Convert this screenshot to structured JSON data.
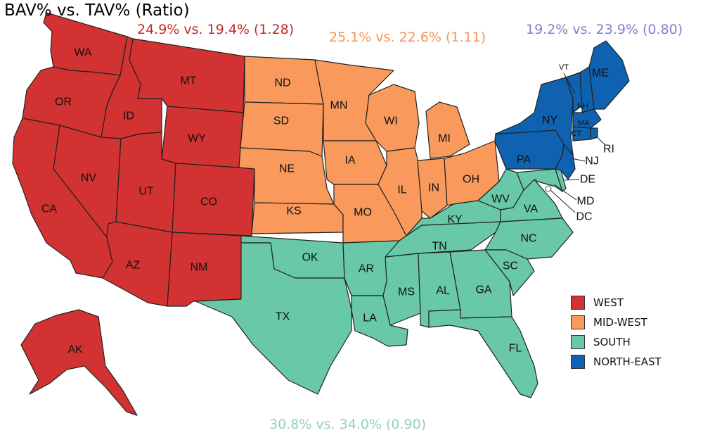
{
  "title": "BAV% vs. TAV% (Ratio)",
  "regions": {
    "west": {
      "label": "WEST",
      "stat": "24.9% vs. 19.4% (1.28)",
      "color": "#d23232",
      "text_color": "#c62828"
    },
    "midwest": {
      "label": "MID-WEST",
      "stat": "25.1% vs. 22.6% (1.11)",
      "color": "#f99a5c",
      "text_color": "#f4935a"
    },
    "south": {
      "label": "SOUTH",
      "stat": "30.8% vs. 34.0% (0.90)",
      "color": "#68c8a8",
      "text_color": "#8fd3b3"
    },
    "northeast": {
      "label": "NORTH-EAST",
      "stat": "19.2% vs. 23.9% (0.80)",
      "color": "#0e62b0",
      "text_color": "#7f7fcf"
    }
  },
  "legend": [
    "west",
    "midwest",
    "south",
    "northeast"
  ],
  "states": {
    "WA": {
      "label": "WA",
      "region": "west"
    },
    "OR": {
      "label": "OR",
      "region": "west"
    },
    "CA": {
      "label": "CA",
      "region": "west"
    },
    "ID": {
      "label": "ID",
      "region": "west"
    },
    "NV": {
      "label": "NV",
      "region": "west"
    },
    "MT": {
      "label": "MT",
      "region": "west"
    },
    "WY": {
      "label": "WY",
      "region": "west"
    },
    "UT": {
      "label": "UT",
      "region": "west"
    },
    "CO": {
      "label": "CO",
      "region": "west"
    },
    "AZ": {
      "label": "AZ",
      "region": "west"
    },
    "NM": {
      "label": "NM",
      "region": "west"
    },
    "AK": {
      "label": "AK",
      "region": "west"
    },
    "ND": {
      "label": "ND",
      "region": "midwest"
    },
    "SD": {
      "label": "SD",
      "region": "midwest"
    },
    "NE": {
      "label": "NE",
      "region": "midwest"
    },
    "KS": {
      "label": "KS",
      "region": "midwest"
    },
    "MN": {
      "label": "MN",
      "region": "midwest"
    },
    "IA": {
      "label": "IA",
      "region": "midwest"
    },
    "MO": {
      "label": "MO",
      "region": "midwest"
    },
    "WI": {
      "label": "WI",
      "region": "midwest"
    },
    "IL": {
      "label": "IL",
      "region": "midwest"
    },
    "MI": {
      "label": "MI",
      "region": "midwest"
    },
    "IN": {
      "label": "IN",
      "region": "midwest"
    },
    "OH": {
      "label": "OH",
      "region": "midwest"
    },
    "OK": {
      "label": "OK",
      "region": "south"
    },
    "TX": {
      "label": "TX",
      "region": "south"
    },
    "AR": {
      "label": "AR",
      "region": "south"
    },
    "LA": {
      "label": "LA",
      "region": "south"
    },
    "MS": {
      "label": "MS",
      "region": "south"
    },
    "AL": {
      "label": "AL",
      "region": "south"
    },
    "GA": {
      "label": "GA",
      "region": "south"
    },
    "FL": {
      "label": "FL",
      "region": "south"
    },
    "TN": {
      "label": "TN",
      "region": "south"
    },
    "KY": {
      "label": "KY",
      "region": "south"
    },
    "WV": {
      "label": "WV",
      "region": "south"
    },
    "VA": {
      "label": "VA",
      "region": "south"
    },
    "NC": {
      "label": "NC",
      "region": "south"
    },
    "SC": {
      "label": "SC",
      "region": "south"
    },
    "DE": {
      "label": "DE",
      "region": "south"
    },
    "MD": {
      "label": "MD",
      "region": "south"
    },
    "DC": {
      "label": "DC",
      "region": "south"
    },
    "PA": {
      "label": "PA",
      "region": "northeast"
    },
    "NY": {
      "label": "NY",
      "region": "northeast"
    },
    "NJ": {
      "label": "NJ",
      "region": "northeast"
    },
    "VT": {
      "label": "VT",
      "region": "northeast"
    },
    "NH": {
      "label": "NH",
      "region": "northeast"
    },
    "ME": {
      "label": "ME",
      "region": "northeast"
    },
    "MA": {
      "label": "MA",
      "region": "northeast"
    },
    "CT": {
      "label": "CT",
      "region": "northeast"
    },
    "RI": {
      "label": "RI",
      "region": "northeast"
    }
  }
}
